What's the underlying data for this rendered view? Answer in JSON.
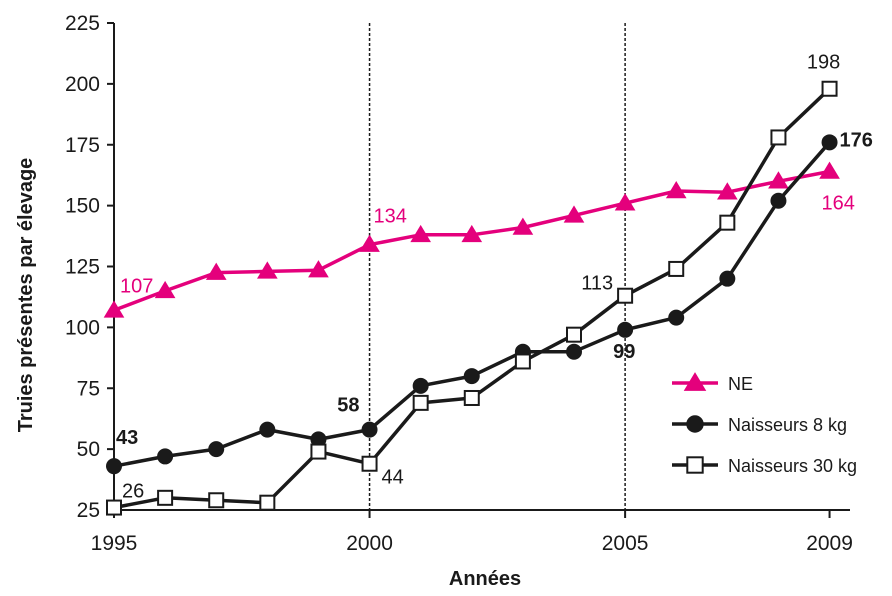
{
  "chart_data": {
    "type": "line",
    "title": "",
    "xlabel": "Années",
    "ylabel": "Truies présentes par élevage",
    "xlim": [
      1995,
      2009.4
    ],
    "ylim": [
      25,
      225
    ],
    "x_ticks": [
      1995,
      2000,
      2005,
      2009
    ],
    "y_ticks": [
      25,
      50,
      75,
      100,
      125,
      150,
      175,
      200,
      225
    ],
    "vertical_reference_lines": [
      2000,
      2005
    ],
    "grid": false,
    "legend_position": "bottom-right",
    "series": [
      {
        "name": "NE",
        "color": "#e4007c",
        "marker": "triangle",
        "x": [
          1995,
          1996,
          1997,
          1998,
          1999,
          2000,
          2001,
          2002,
          2003,
          2004,
          2005,
          2006,
          2007,
          2008,
          2009
        ],
        "values": [
          107,
          115,
          122.5,
          123,
          123.5,
          134,
          138,
          138,
          141,
          146,
          151,
          156,
          155.5,
          160,
          164
        ]
      },
      {
        "name": "Naisseurs 8 kg",
        "color": "#1a1a1a",
        "marker": "circle",
        "x": [
          1995,
          1996,
          1997,
          1998,
          1999,
          2000,
          2001,
          2002,
          2003,
          2004,
          2005,
          2006,
          2007,
          2008,
          2009
        ],
        "values": [
          43,
          47,
          50,
          58,
          54,
          58,
          76,
          80,
          90,
          90,
          99,
          104,
          120,
          152,
          176
        ]
      },
      {
        "name": "Naisseurs 30 kg",
        "color": "#1a1a1a",
        "marker": "open-square",
        "x": [
          1995,
          1996,
          1997,
          1998,
          1999,
          2000,
          2001,
          2002,
          2003,
          2004,
          2005,
          2006,
          2007,
          2008,
          2009
        ],
        "values": [
          26,
          30,
          29,
          28,
          49,
          44,
          69,
          71,
          86,
          97,
          113,
          124,
          143,
          178,
          198
        ]
      }
    ],
    "annotations": [
      {
        "text": "107",
        "series": 0,
        "index": 0,
        "color": "#e4007c",
        "weight": "normal",
        "anchor": "start",
        "dx": 6,
        "dy": -18
      },
      {
        "text": "134",
        "series": 0,
        "index": 5,
        "color": "#e4007c",
        "weight": "normal",
        "anchor": "start",
        "dx": 4,
        "dy": -22
      },
      {
        "text": "164",
        "series": 0,
        "index": 14,
        "color": "#e4007c",
        "weight": "normal",
        "anchor": "start",
        "dx": -8,
        "dy": 38
      },
      {
        "text": "43",
        "series": 1,
        "index": 0,
        "color": "#1a1a1a",
        "weight": "bold",
        "anchor": "start",
        "dx": 2,
        "dy": -22
      },
      {
        "text": "58",
        "series": 1,
        "index": 5,
        "color": "#1a1a1a",
        "weight": "bold",
        "anchor": "end",
        "dx": -10,
        "dy": -18
      },
      {
        "text": "99",
        "series": 1,
        "index": 10,
        "color": "#1a1a1a",
        "weight": "bold",
        "anchor": "start",
        "dx": -12,
        "dy": 28
      },
      {
        "text": "176",
        "series": 1,
        "index": 14,
        "color": "#1a1a1a",
        "weight": "bold",
        "anchor": "start",
        "dx": 10,
        "dy": 4
      },
      {
        "text": "26",
        "series": 2,
        "index": 0,
        "color": "#1a1a1a",
        "weight": "normal",
        "anchor": "start",
        "dx": 8,
        "dy": -10
      },
      {
        "text": "44",
        "series": 2,
        "index": 5,
        "color": "#1a1a1a",
        "weight": "normal",
        "anchor": "start",
        "dx": 12,
        "dy": 20
      },
      {
        "text": "113",
        "series": 2,
        "index": 10,
        "color": "#1a1a1a",
        "weight": "normal",
        "anchor": "end",
        "dx": -12,
        "dy": -6
      },
      {
        "text": "198",
        "series": 2,
        "index": 14,
        "color": "#1a1a1a",
        "weight": "normal",
        "anchor": "middle",
        "dx": -6,
        "dy": -20
      }
    ]
  }
}
